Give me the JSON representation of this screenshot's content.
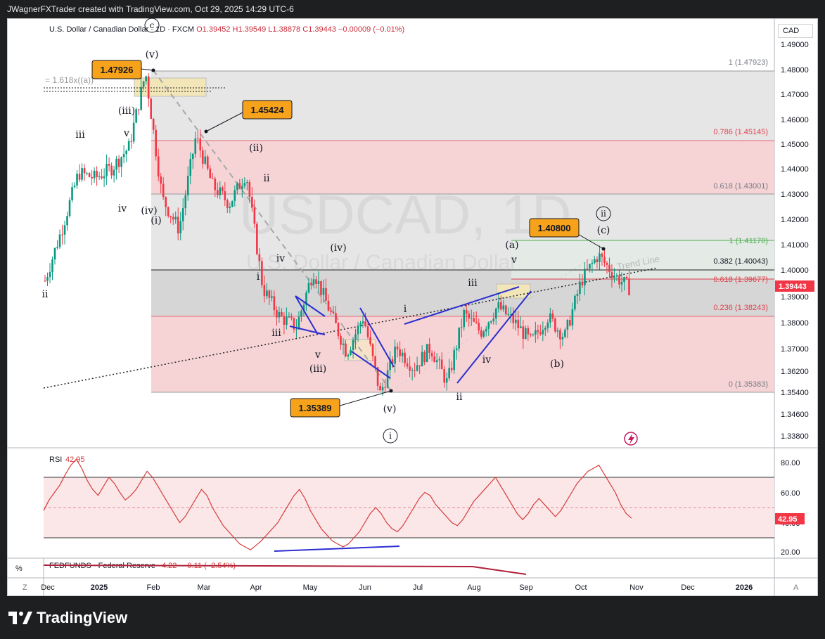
{
  "header": {
    "text": "JWagnerFXTrader created with TradingView.com, Oct 29, 2025 14:29 UTC-6"
  },
  "footer": {
    "brand": "TradingView"
  },
  "instrument": {
    "name": "U.S. Dollar / Canadian Dollar",
    "sep1": "·",
    "interval": "1D",
    "sep2": "·",
    "exchange": "FXCM",
    "open": "O1.39452",
    "high": "H1.39549",
    "low": "L1.38878",
    "close": "C1.39443",
    "change": "−0.00009 (−0.01%)",
    "currency": "CAD"
  },
  "watermark": {
    "symbol": "USDCAD, 1D",
    "name": "U.S. Dollar / Canadian Dollar"
  },
  "colors": {
    "up": "#089981",
    "down": "#f23645",
    "fib_red": "#f6d4d6",
    "fib_gray": "#e6e6e6",
    "fib_green": "#e6efe8",
    "callout": "#f7a21b",
    "blue_line": "#2c2ed0",
    "rsi_line": "#d53b3b"
  },
  "chart_data": {
    "type": "candlestick",
    "x_axis_labels": [
      "Dec",
      "2025",
      "Feb",
      "Mar",
      "Apr",
      "May",
      "Jun",
      "Jul",
      "Aug",
      "Sep",
      "Oct",
      "Nov",
      "Dec",
      "2026"
    ],
    "y_axis_labels": [
      "1.49000",
      "1.48000",
      "1.47000",
      "1.46000",
      "1.45000",
      "1.44000",
      "1.43000",
      "1.42000",
      "1.41000",
      "1.40000",
      "1.39000",
      "1.38000",
      "1.37000",
      "1.36200",
      "1.35400",
      "1.34600",
      "1.33800"
    ],
    "last_price": "1.39443",
    "price_path": [
      [
        "Dec",
        1.398
      ],
      [
        "mid-Dec",
        1.418
      ],
      [
        "late-Dec",
        1.44
      ],
      [
        "2025",
        1.438
      ],
      [
        "mid-Jan",
        1.442
      ],
      [
        "late-Jan",
        1.45
      ],
      [
        "Feb",
        1.4792
      ],
      [
        "early-Feb",
        1.43
      ],
      [
        "mid-Feb",
        1.418
      ],
      [
        "Mar",
        1.4542
      ],
      [
        "mid-Mar",
        1.435
      ],
      [
        "late-Mar",
        1.428
      ],
      [
        "Apr",
        1.44
      ],
      [
        "early-Apr",
        1.395
      ],
      [
        "mid-Apr",
        1.384
      ],
      [
        "late-Apr",
        1.38
      ],
      [
        "May",
        1.402
      ],
      [
        "mid-May",
        1.386
      ],
      [
        "late-May",
        1.37
      ],
      [
        "Jun",
        1.384
      ],
      [
        "mid-Jun",
        1.3539
      ],
      [
        "late-Jun",
        1.372
      ],
      [
        "Jul",
        1.364
      ],
      [
        "mid-Jul",
        1.372
      ],
      [
        "late-Jul",
        1.358
      ],
      [
        "Aug",
        1.385
      ],
      [
        "mid-Aug",
        1.378
      ],
      [
        "late-Aug",
        1.388
      ],
      [
        "Sep",
        1.382
      ],
      [
        "early-Sep",
        1.374
      ],
      [
        "mid-Sep",
        1.384
      ],
      [
        "late-Sep",
        1.376
      ],
      [
        "Oct",
        1.398
      ],
      [
        "mid-Oct",
        1.408
      ],
      [
        "late-Oct",
        1.4
      ],
      [
        "Nov-",
        1.3944
      ]
    ],
    "fib_levels": [
      {
        "label": "1 (1.47923)",
        "value": 1.47923
      },
      {
        "label": "0.786 (1.45145)",
        "value": 1.45145
      },
      {
        "label": "0.618 (1.43001)",
        "value": 1.43001
      },
      {
        "label": "0.382 (1.40043)",
        "value": 1.40043
      },
      {
        "label": "0.236 (1.38243)",
        "value": 1.38243
      },
      {
        "label": "0 (1.35383)",
        "value": 1.35383
      }
    ],
    "fib2_levels": [
      {
        "label": "1 (1.41170)",
        "value": 1.4117
      },
      {
        "label": "0.618 (1.39677)",
        "value": 1.39677
      }
    ],
    "fib_ratio_label": "= 1.618x((a))",
    "callouts": [
      {
        "text": "1.47926",
        "value": 1.47926
      },
      {
        "text": "1.45424",
        "value": 1.45424
      },
      {
        "text": "1.40800",
        "value": 1.408
      },
      {
        "text": "1.35389",
        "value": 1.35389
      }
    ],
    "wave_labels": [
      "(v)",
      "(iii)",
      "iii",
      "v",
      "iv",
      "(iv)",
      "(i)",
      "ii",
      "1.618",
      "(ii)",
      "ii",
      "iv",
      "i",
      "iii",
      "v",
      "(iii)",
      "(iv)",
      "(v)",
      "i",
      "iii",
      "i",
      "iv",
      "ii",
      "(a)",
      "v",
      "(b)",
      "(c)",
      "c",
      "ii",
      "i"
    ],
    "trend_label": "Trend Line",
    "rsi": {
      "label": "RSI",
      "value": "42.95",
      "y_labels": [
        "80.00",
        "60.00",
        "40.00",
        "20.00"
      ],
      "upper": 70,
      "lower": 30,
      "mid": 50,
      "series": [
        48,
        55,
        60,
        65,
        72,
        78,
        82,
        76,
        68,
        62,
        58,
        64,
        70,
        66,
        60,
        55,
        58,
        62,
        68,
        74,
        70,
        64,
        58,
        52,
        46,
        40,
        44,
        50,
        56,
        62,
        58,
        50,
        44,
        38,
        34,
        30,
        26,
        24,
        22,
        25,
        28,
        32,
        36,
        40,
        46,
        52,
        58,
        62,
        56,
        48,
        42,
        36,
        32,
        28,
        26,
        24,
        26,
        30,
        34,
        40,
        46,
        50,
        46,
        40,
        36,
        34,
        38,
        44,
        50,
        56,
        60,
        58,
        52,
        48,
        44,
        40,
        38,
        42,
        48,
        54,
        58,
        62,
        66,
        70,
        64,
        58,
        52,
        46,
        42,
        46,
        52,
        56,
        52,
        48,
        44,
        48,
        54,
        60,
        66,
        70,
        74,
        76,
        78,
        72,
        66,
        60,
        52,
        46,
        42.95
      ]
    },
    "fedfunds": {
      "label": "FEDFUNDS · Federal Reserve",
      "value": "4.22",
      "change": "−0.11 (−2.54%)"
    }
  }
}
